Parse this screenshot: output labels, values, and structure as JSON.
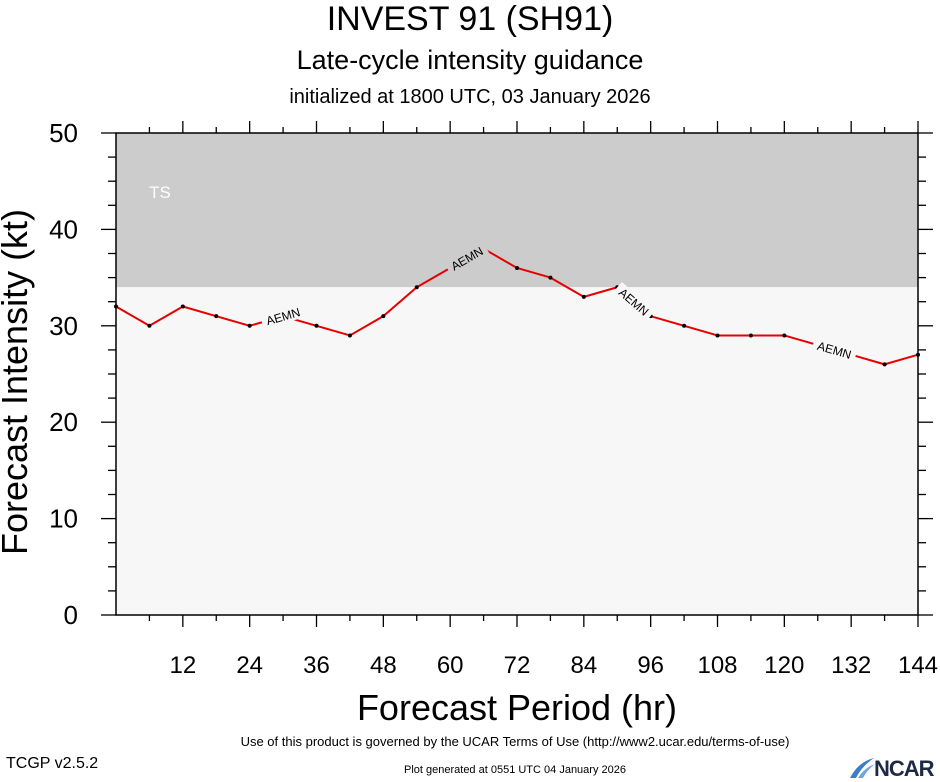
{
  "header": {
    "title": "INVEST 91 (SH91)",
    "subtitle": "Late-cycle intensity guidance",
    "init_line": "initialized at 1800 UTC, 03 January 2026"
  },
  "footer": {
    "terms": "Use of this product is governed by the UCAR Terms of Use (http://www2.ucar.edu/terms-of-use)",
    "version": "TCGP v2.5.2",
    "generated": "Plot generated at 0551 UTC   04 January 2026",
    "logo_text": "NCAR"
  },
  "chart_data": {
    "type": "line",
    "xlabel": "Forecast Period (hr)",
    "ylabel": "Forecast Intensity (kt)",
    "xlim": [
      0,
      144
    ],
    "ylim": [
      0,
      50
    ],
    "x_ticks": [
      12,
      24,
      36,
      48,
      60,
      72,
      84,
      96,
      108,
      120,
      132,
      144
    ],
    "y_ticks": [
      0,
      10,
      20,
      30,
      40,
      50
    ],
    "x_minor_ticks": [
      6,
      18,
      30,
      42,
      54,
      66,
      78,
      90,
      102,
      114,
      126,
      138
    ],
    "y_minor_ticks": [
      2.5,
      5,
      7.5,
      12.5,
      15,
      17.5,
      22.5,
      25,
      27.5,
      32.5,
      35,
      37.5,
      42.5,
      45,
      47.5
    ],
    "bands": [
      {
        "label": "TS",
        "from": 34,
        "to": 50,
        "color": "#cccccc"
      },
      {
        "label": "",
        "from": 0,
        "to": 34,
        "color": "#f7f7f7"
      }
    ],
    "series": [
      {
        "name": "AEMN",
        "color": "#e60000",
        "x": [
          0,
          6,
          12,
          18,
          24,
          30,
          36,
          42,
          48,
          54,
          60,
          66,
          72,
          78,
          84,
          90,
          96,
          102,
          108,
          114,
          120,
          126,
          132,
          138,
          144
        ],
        "y": [
          32,
          30,
          32,
          31,
          30,
          31,
          30,
          29,
          31,
          34,
          36,
          38,
          36,
          35,
          33,
          34,
          31,
          30,
          29,
          29,
          29,
          28,
          27,
          26,
          27
        ]
      }
    ],
    "series_labels": [
      {
        "text": "AEMN",
        "x": 30
      },
      {
        "text": "AEMN",
        "x": 63
      },
      {
        "text": "AEMN",
        "x": 93
      },
      {
        "text": "AEMN",
        "x": 129
      }
    ],
    "grid": false,
    "legend": "none"
  }
}
